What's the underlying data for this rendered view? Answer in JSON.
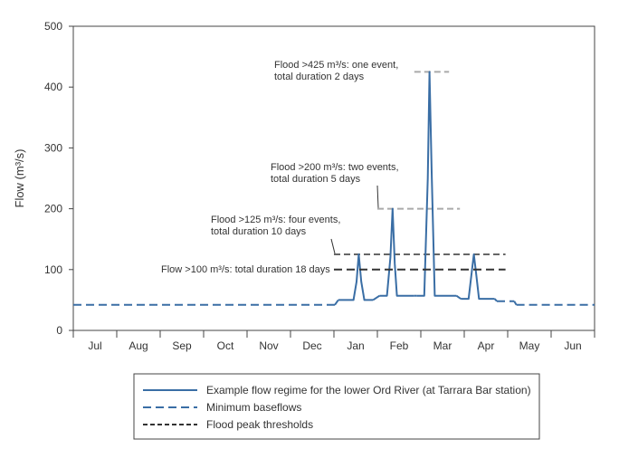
{
  "chart_data": {
    "type": "line",
    "ylabel": "Flow (m³/s)",
    "ylim": [
      0,
      500
    ],
    "yticks": [
      0,
      100,
      200,
      300,
      400,
      500
    ],
    "months": [
      "Jul",
      "Aug",
      "Sep",
      "Oct",
      "Nov",
      "Dec",
      "Jan",
      "Feb",
      "Mar",
      "Apr",
      "May",
      "Jun"
    ],
    "grid": false,
    "series": [
      {
        "name": "Example flow regime for the lower Ord River (at Tarrara Bar station)",
        "style": "solid",
        "color": "#3a6ea5",
        "segments": [
          [
            [
              6.1,
              50
            ],
            [
              6.45,
              50
            ],
            [
              6.52,
              80
            ],
            [
              6.57,
              125
            ],
            [
              6.63,
              80
            ],
            [
              6.7,
              50
            ],
            [
              6.9,
              50
            ]
          ],
          [
            [
              7.05,
              57
            ],
            [
              7.22,
              57
            ],
            [
              7.3,
              120
            ],
            [
              7.35,
              200
            ],
            [
              7.4,
              110
            ],
            [
              7.45,
              57
            ],
            [
              7.85,
              57
            ]
          ],
          [
            [
              7.9,
              57
            ],
            [
              8.08,
              57
            ],
            [
              8.16,
              250
            ],
            [
              8.2,
              425
            ],
            [
              8.25,
              260
            ],
            [
              8.32,
              57
            ],
            [
              8.82,
              57
            ]
          ],
          [
            [
              8.92,
              52
            ],
            [
              9.1,
              52
            ],
            [
              9.17,
              95
            ],
            [
              9.22,
              125
            ],
            [
              9.28,
              90
            ],
            [
              9.34,
              52
            ],
            [
              9.7,
              52
            ]
          ]
        ]
      },
      {
        "name": "Minimum baseflows",
        "style": "dashed",
        "color": "#3a6ea5",
        "segments": [
          [
            [
              0,
              42
            ],
            [
              6.02,
              42
            ]
          ],
          [
            [
              6.02,
              42
            ],
            [
              6.1,
              50
            ]
          ],
          [
            [
              6.9,
              50
            ],
            [
              7.05,
              57
            ]
          ],
          [
            [
              7.85,
              57
            ],
            [
              7.9,
              57
            ]
          ],
          [
            [
              8.82,
              57
            ],
            [
              8.92,
              52
            ]
          ],
          [
            [
              9.7,
              52
            ],
            [
              9.75,
              48
            ]
          ],
          [
            [
              9.75,
              48
            ],
            [
              10.15,
              48
            ]
          ],
          [
            [
              10.15,
              48
            ],
            [
              10.2,
              42
            ]
          ],
          [
            [
              10.2,
              42
            ],
            [
              12,
              42
            ]
          ]
        ]
      },
      {
        "name": "Flood peak thresholds",
        "style": "dashed",
        "color": "#333333",
        "segments": [
          [
            [
              6.0,
              100
            ],
            [
              9.95,
              100
            ]
          ]
        ]
      }
    ],
    "thresholds": [
      {
        "value": 125,
        "x_range": [
          6.0,
          9.95
        ],
        "color": "#666666"
      },
      {
        "value": 200,
        "x_range": [
          7.0,
          8.9
        ],
        "color": "#aaaaaa"
      },
      {
        "value": 425,
        "x_range": [
          7.85,
          8.65
        ],
        "color": "#aaaaaa"
      }
    ],
    "annotations": [
      {
        "lines": [
          "Flow >100 m³/s: total duration 18 days"
        ],
        "at_value": 100,
        "pointer": null
      },
      {
        "lines": [
          "Flood >125 m³/s: four events,",
          "total duration 10 days"
        ],
        "at_value": 125,
        "pointer": [
          6.0,
          125
        ]
      },
      {
        "lines": [
          "Flood >200 m³/s: two events,",
          "total duration 5 days"
        ],
        "at_value": 200,
        "pointer": [
          7.0,
          200
        ]
      },
      {
        "lines": [
          "Flood >425 m³/s: one event,",
          "total duration 2 days"
        ],
        "at_value": 425,
        "pointer": null
      }
    ],
    "legend": {
      "position": "bottom",
      "items": [
        {
          "label": "Example flow regime for the lower Ord River (at Tarrara Bar station)",
          "style": "solid",
          "color": "#3a6ea5"
        },
        {
          "label": "Minimum baseflows",
          "style": "dashed",
          "color": "#3a6ea5"
        },
        {
          "label": "Flood peak thresholds",
          "style": "dashed",
          "color": "#333333"
        }
      ]
    }
  }
}
